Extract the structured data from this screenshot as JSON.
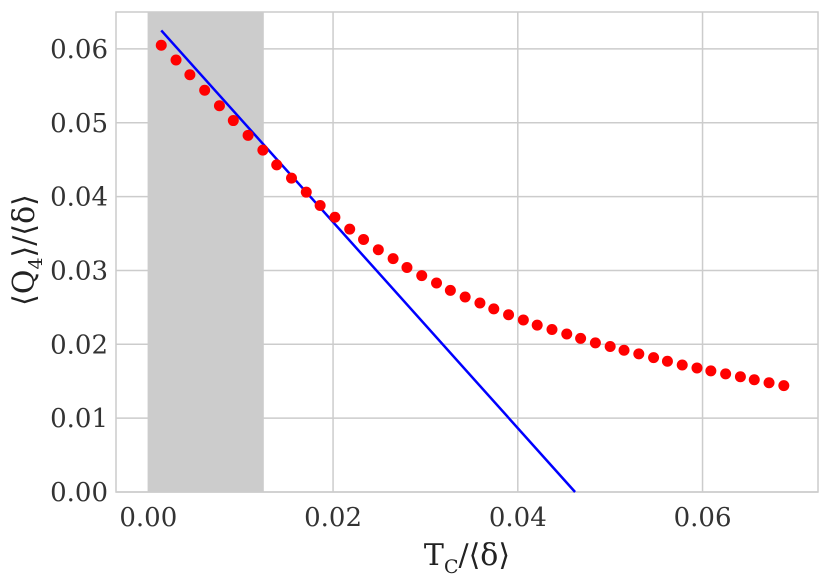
{
  "chart_data": {
    "type": "scatter",
    "xlabel": "T_C/⟨δ⟩",
    "ylabel": "⟨Q_4⟩/⟨δ⟩",
    "xlim": [
      -0.0035,
      0.0725
    ],
    "ylim": [
      0.0,
      0.065
    ],
    "x_ticks": [
      "0.00",
      "0.02",
      "0.04",
      "0.06"
    ],
    "y_ticks": [
      "0.00",
      "0.01",
      "0.02",
      "0.03",
      "0.04",
      "0.05",
      "0.06"
    ],
    "grid": true,
    "shaded_region": {
      "x_start": 0.0,
      "x_end": 0.0125,
      "color": "#cccccc"
    },
    "series": [
      {
        "kind": "scatter",
        "color": "#ff0000",
        "x": [
          0.0014,
          0.003,
          0.0045,
          0.0061,
          0.0077,
          0.0092,
          0.0108,
          0.0124,
          0.0139,
          0.0155,
          0.0171,
          0.0186,
          0.0202,
          0.0218,
          0.0233,
          0.0249,
          0.0265,
          0.028,
          0.0296,
          0.0312,
          0.0327,
          0.0343,
          0.0359,
          0.0374,
          0.039,
          0.0406,
          0.0421,
          0.0437,
          0.0453,
          0.0468,
          0.0484,
          0.05,
          0.0515,
          0.0531,
          0.0547,
          0.0562,
          0.0578,
          0.0594,
          0.0609,
          0.0625,
          0.0641,
          0.0656,
          0.0672,
          0.0688
        ],
        "y": [
          0.0605,
          0.0585,
          0.0565,
          0.0544,
          0.0523,
          0.0503,
          0.0483,
          0.0463,
          0.0443,
          0.0425,
          0.0406,
          0.0388,
          0.0372,
          0.0356,
          0.0342,
          0.0328,
          0.0316,
          0.0304,
          0.0293,
          0.0283,
          0.0273,
          0.0264,
          0.0256,
          0.0248,
          0.024,
          0.0233,
          0.0226,
          0.022,
          0.0214,
          0.0208,
          0.0202,
          0.0197,
          0.0192,
          0.0187,
          0.0182,
          0.0177,
          0.0172,
          0.0168,
          0.0164,
          0.016,
          0.0156,
          0.0152,
          0.0148,
          0.0144
        ]
      },
      {
        "kind": "line",
        "color": "#0000ff",
        "x": [
          0.0014,
          0.0462
        ],
        "y": [
          0.0625,
          0.0
        ]
      }
    ]
  }
}
